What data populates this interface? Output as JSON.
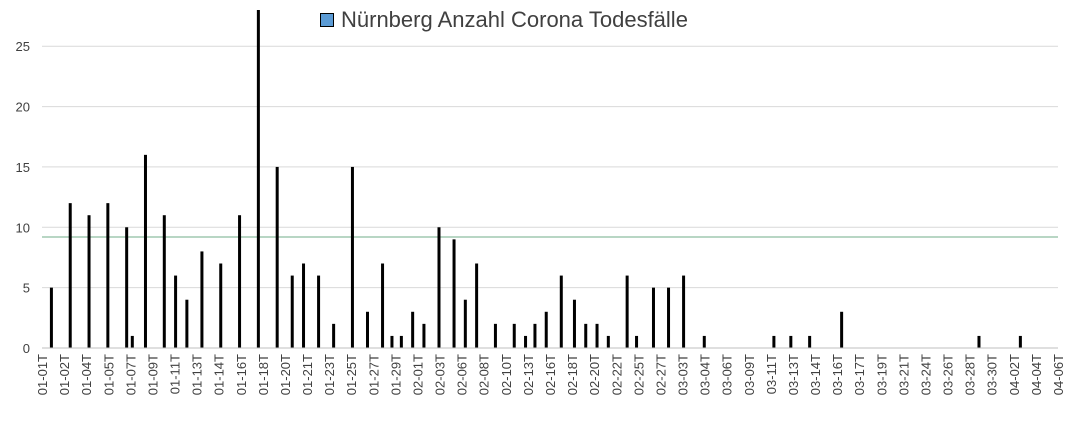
{
  "chart_data": {
    "type": "bar",
    "series": [
      {
        "name": "Nürnberg Anzahl Corona Todesfälle",
        "color": "#5b9bd5"
      }
    ],
    "bar_color": "#000000",
    "reference_line": {
      "value": 9.2,
      "color": "#70ad8a"
    },
    "ylim": [
      0,
      28
    ],
    "yticks": [
      0,
      5,
      10,
      15,
      20,
      25
    ],
    "x_ticks": [
      "01-01T",
      "01-02T",
      "01-04T",
      "01-05T",
      "01-07T",
      "01-09T",
      "01-11T",
      "01-13T",
      "01-14T",
      "01-16T",
      "01-18T",
      "01-20T",
      "01-21T",
      "01-23T",
      "01-25T",
      "01-27T",
      "01-29T",
      "02-01T",
      "02-03T",
      "02-06T",
      "02-08T",
      "02-10T",
      "02-13T",
      "02-16T",
      "02-18T",
      "02-20T",
      "02-22T",
      "02-25T",
      "02-27T",
      "03-03T",
      "03-04T",
      "03-06T",
      "03-09T",
      "03-11T",
      "03-13T",
      "03-14T",
      "03-16T",
      "03-17T",
      "03-19T",
      "03-21T",
      "03-24T",
      "03-26T",
      "03-28T",
      "03-30T",
      "04-02T",
      "04-04T",
      "04-06T"
    ],
    "grid": true,
    "legend_position": "top",
    "bars": [
      {
        "x": 0.5,
        "value": 5
      },
      {
        "x": 1.5,
        "value": 12
      },
      {
        "x": 2.5,
        "value": 11
      },
      {
        "x": 3.5,
        "value": 12
      },
      {
        "x": 4.5,
        "value": 10
      },
      {
        "x": 4.8,
        "value": 1
      },
      {
        "x": 5.5,
        "value": 16
      },
      {
        "x": 6.5,
        "value": 11
      },
      {
        "x": 7.1,
        "value": 6
      },
      {
        "x": 7.7,
        "value": 4
      },
      {
        "x": 8.5,
        "value": 8
      },
      {
        "x": 9.5,
        "value": 7
      },
      {
        "x": 10.5,
        "value": 11
      },
      {
        "x": 11.5,
        "value": 28
      },
      {
        "x": 12.5,
        "value": 15
      },
      {
        "x": 13.3,
        "value": 6
      },
      {
        "x": 13.9,
        "value": 7
      },
      {
        "x": 14.7,
        "value": 6
      },
      {
        "x": 15.5,
        "value": 2
      },
      {
        "x": 16.5,
        "value": 15
      },
      {
        "x": 17.3,
        "value": 3
      },
      {
        "x": 18.1,
        "value": 7
      },
      {
        "x": 18.6,
        "value": 1
      },
      {
        "x": 19.1,
        "value": 1
      },
      {
        "x": 19.7,
        "value": 3
      },
      {
        "x": 20.3,
        "value": 2
      },
      {
        "x": 21.1,
        "value": 10
      },
      {
        "x": 21.9,
        "value": 9
      },
      {
        "x": 22.5,
        "value": 4
      },
      {
        "x": 23.1,
        "value": 7
      },
      {
        "x": 24.1,
        "value": 2
      },
      {
        "x": 25.1,
        "value": 2
      },
      {
        "x": 25.7,
        "value": 1
      },
      {
        "x": 26.2,
        "value": 2
      },
      {
        "x": 26.8,
        "value": 3
      },
      {
        "x": 27.6,
        "value": 6
      },
      {
        "x": 28.3,
        "value": 4
      },
      {
        "x": 28.9,
        "value": 2
      },
      {
        "x": 29.5,
        "value": 2
      },
      {
        "x": 30.1,
        "value": 1
      },
      {
        "x": 31.1,
        "value": 6
      },
      {
        "x": 31.6,
        "value": 1
      },
      {
        "x": 32.5,
        "value": 5
      },
      {
        "x": 33.3,
        "value": 5
      },
      {
        "x": 34.1,
        "value": 6
      },
      {
        "x": 35.2,
        "value": 1
      },
      {
        "x": 38.9,
        "value": 1
      },
      {
        "x": 39.8,
        "value": 1
      },
      {
        "x": 40.8,
        "value": 1
      },
      {
        "x": 42.5,
        "value": 3
      },
      {
        "x": 49.8,
        "value": 1
      },
      {
        "x": 52.0,
        "value": 1
      }
    ]
  }
}
